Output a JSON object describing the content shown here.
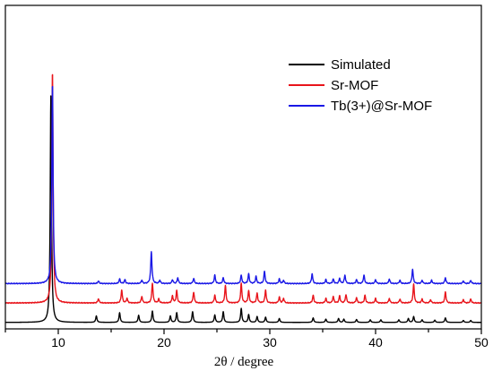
{
  "chart_data": {
    "type": "line",
    "xlabel": "2θ / degree",
    "ylabel": "",
    "xlim": [
      5,
      50
    ],
    "xticks": [
      "10",
      "20",
      "30",
      "40",
      "50"
    ],
    "grid": false,
    "legend_position": "top-right",
    "baseline": 0.02,
    "spacing": 0.06,
    "series": [
      {
        "name": "Simulated",
        "color": "#000000",
        "offset": 0,
        "peaks": [
          [
            9.3,
            0.7
          ],
          [
            13.6,
            0.02
          ],
          [
            15.8,
            0.03
          ],
          [
            17.6,
            0.022
          ],
          [
            18.9,
            0.035
          ],
          [
            20.6,
            0.02
          ],
          [
            21.2,
            0.03
          ],
          [
            22.7,
            0.033
          ],
          [
            24.8,
            0.023
          ],
          [
            25.6,
            0.033
          ],
          [
            27.3,
            0.043
          ],
          [
            28.0,
            0.024
          ],
          [
            28.8,
            0.018
          ],
          [
            29.6,
            0.016
          ],
          [
            30.9,
            0.012
          ],
          [
            34.1,
            0.014
          ],
          [
            35.3,
            0.01
          ],
          [
            36.5,
            0.012
          ],
          [
            37.0,
            0.01
          ],
          [
            38.2,
            0.009
          ],
          [
            39.5,
            0.008
          ],
          [
            40.5,
            0.008
          ],
          [
            42.2,
            0.008
          ],
          [
            43.1,
            0.012
          ],
          [
            43.6,
            0.018
          ],
          [
            44.4,
            0.008
          ],
          [
            45.6,
            0.007
          ],
          [
            46.6,
            0.014
          ],
          [
            48.3,
            0.006
          ],
          [
            49.0,
            0.006
          ]
        ]
      },
      {
        "name": "Sr-MOF",
        "color": "#e8141b",
        "offset": 1,
        "peaks": [
          [
            9.45,
            0.72
          ],
          [
            13.8,
            0.013
          ],
          [
            16.0,
            0.04
          ],
          [
            16.5,
            0.014
          ],
          [
            17.9,
            0.02
          ],
          [
            18.9,
            0.062
          ],
          [
            19.5,
            0.012
          ],
          [
            20.8,
            0.022
          ],
          [
            21.2,
            0.038
          ],
          [
            22.8,
            0.034
          ],
          [
            24.8,
            0.024
          ],
          [
            25.8,
            0.054
          ],
          [
            27.3,
            0.06
          ],
          [
            28.0,
            0.038
          ],
          [
            28.8,
            0.03
          ],
          [
            29.6,
            0.04
          ],
          [
            30.9,
            0.018
          ],
          [
            31.3,
            0.014
          ],
          [
            34.1,
            0.024
          ],
          [
            35.3,
            0.014
          ],
          [
            36.0,
            0.02
          ],
          [
            36.6,
            0.022
          ],
          [
            37.2,
            0.026
          ],
          [
            38.2,
            0.016
          ],
          [
            39.0,
            0.024
          ],
          [
            40.0,
            0.014
          ],
          [
            41.3,
            0.014
          ],
          [
            42.3,
            0.012
          ],
          [
            43.6,
            0.058
          ],
          [
            44.4,
            0.012
          ],
          [
            45.2,
            0.01
          ],
          [
            46.6,
            0.034
          ],
          [
            48.3,
            0.01
          ],
          [
            49.0,
            0.012
          ]
        ]
      },
      {
        "name": "Tb(3+)@Sr-MOF",
        "color": "#1a18e6",
        "offset": 2,
        "peaks": [
          [
            9.45,
            0.62
          ],
          [
            13.8,
            0.008
          ],
          [
            15.8,
            0.014
          ],
          [
            16.3,
            0.012
          ],
          [
            17.9,
            0.01
          ],
          [
            18.8,
            0.098
          ],
          [
            19.6,
            0.01
          ],
          [
            20.8,
            0.012
          ],
          [
            21.3,
            0.018
          ],
          [
            22.8,
            0.016
          ],
          [
            24.8,
            0.026
          ],
          [
            25.6,
            0.018
          ],
          [
            27.3,
            0.026
          ],
          [
            28.0,
            0.03
          ],
          [
            28.7,
            0.022
          ],
          [
            29.5,
            0.038
          ],
          [
            30.9,
            0.014
          ],
          [
            31.3,
            0.01
          ],
          [
            34.0,
            0.03
          ],
          [
            35.3,
            0.012
          ],
          [
            36.0,
            0.014
          ],
          [
            36.6,
            0.016
          ],
          [
            37.1,
            0.026
          ],
          [
            38.2,
            0.012
          ],
          [
            38.9,
            0.026
          ],
          [
            40.0,
            0.012
          ],
          [
            41.3,
            0.014
          ],
          [
            42.3,
            0.01
          ],
          [
            43.5,
            0.044
          ],
          [
            44.4,
            0.01
          ],
          [
            45.3,
            0.01
          ],
          [
            46.6,
            0.018
          ],
          [
            48.3,
            0.008
          ],
          [
            49.0,
            0.01
          ]
        ]
      }
    ]
  }
}
